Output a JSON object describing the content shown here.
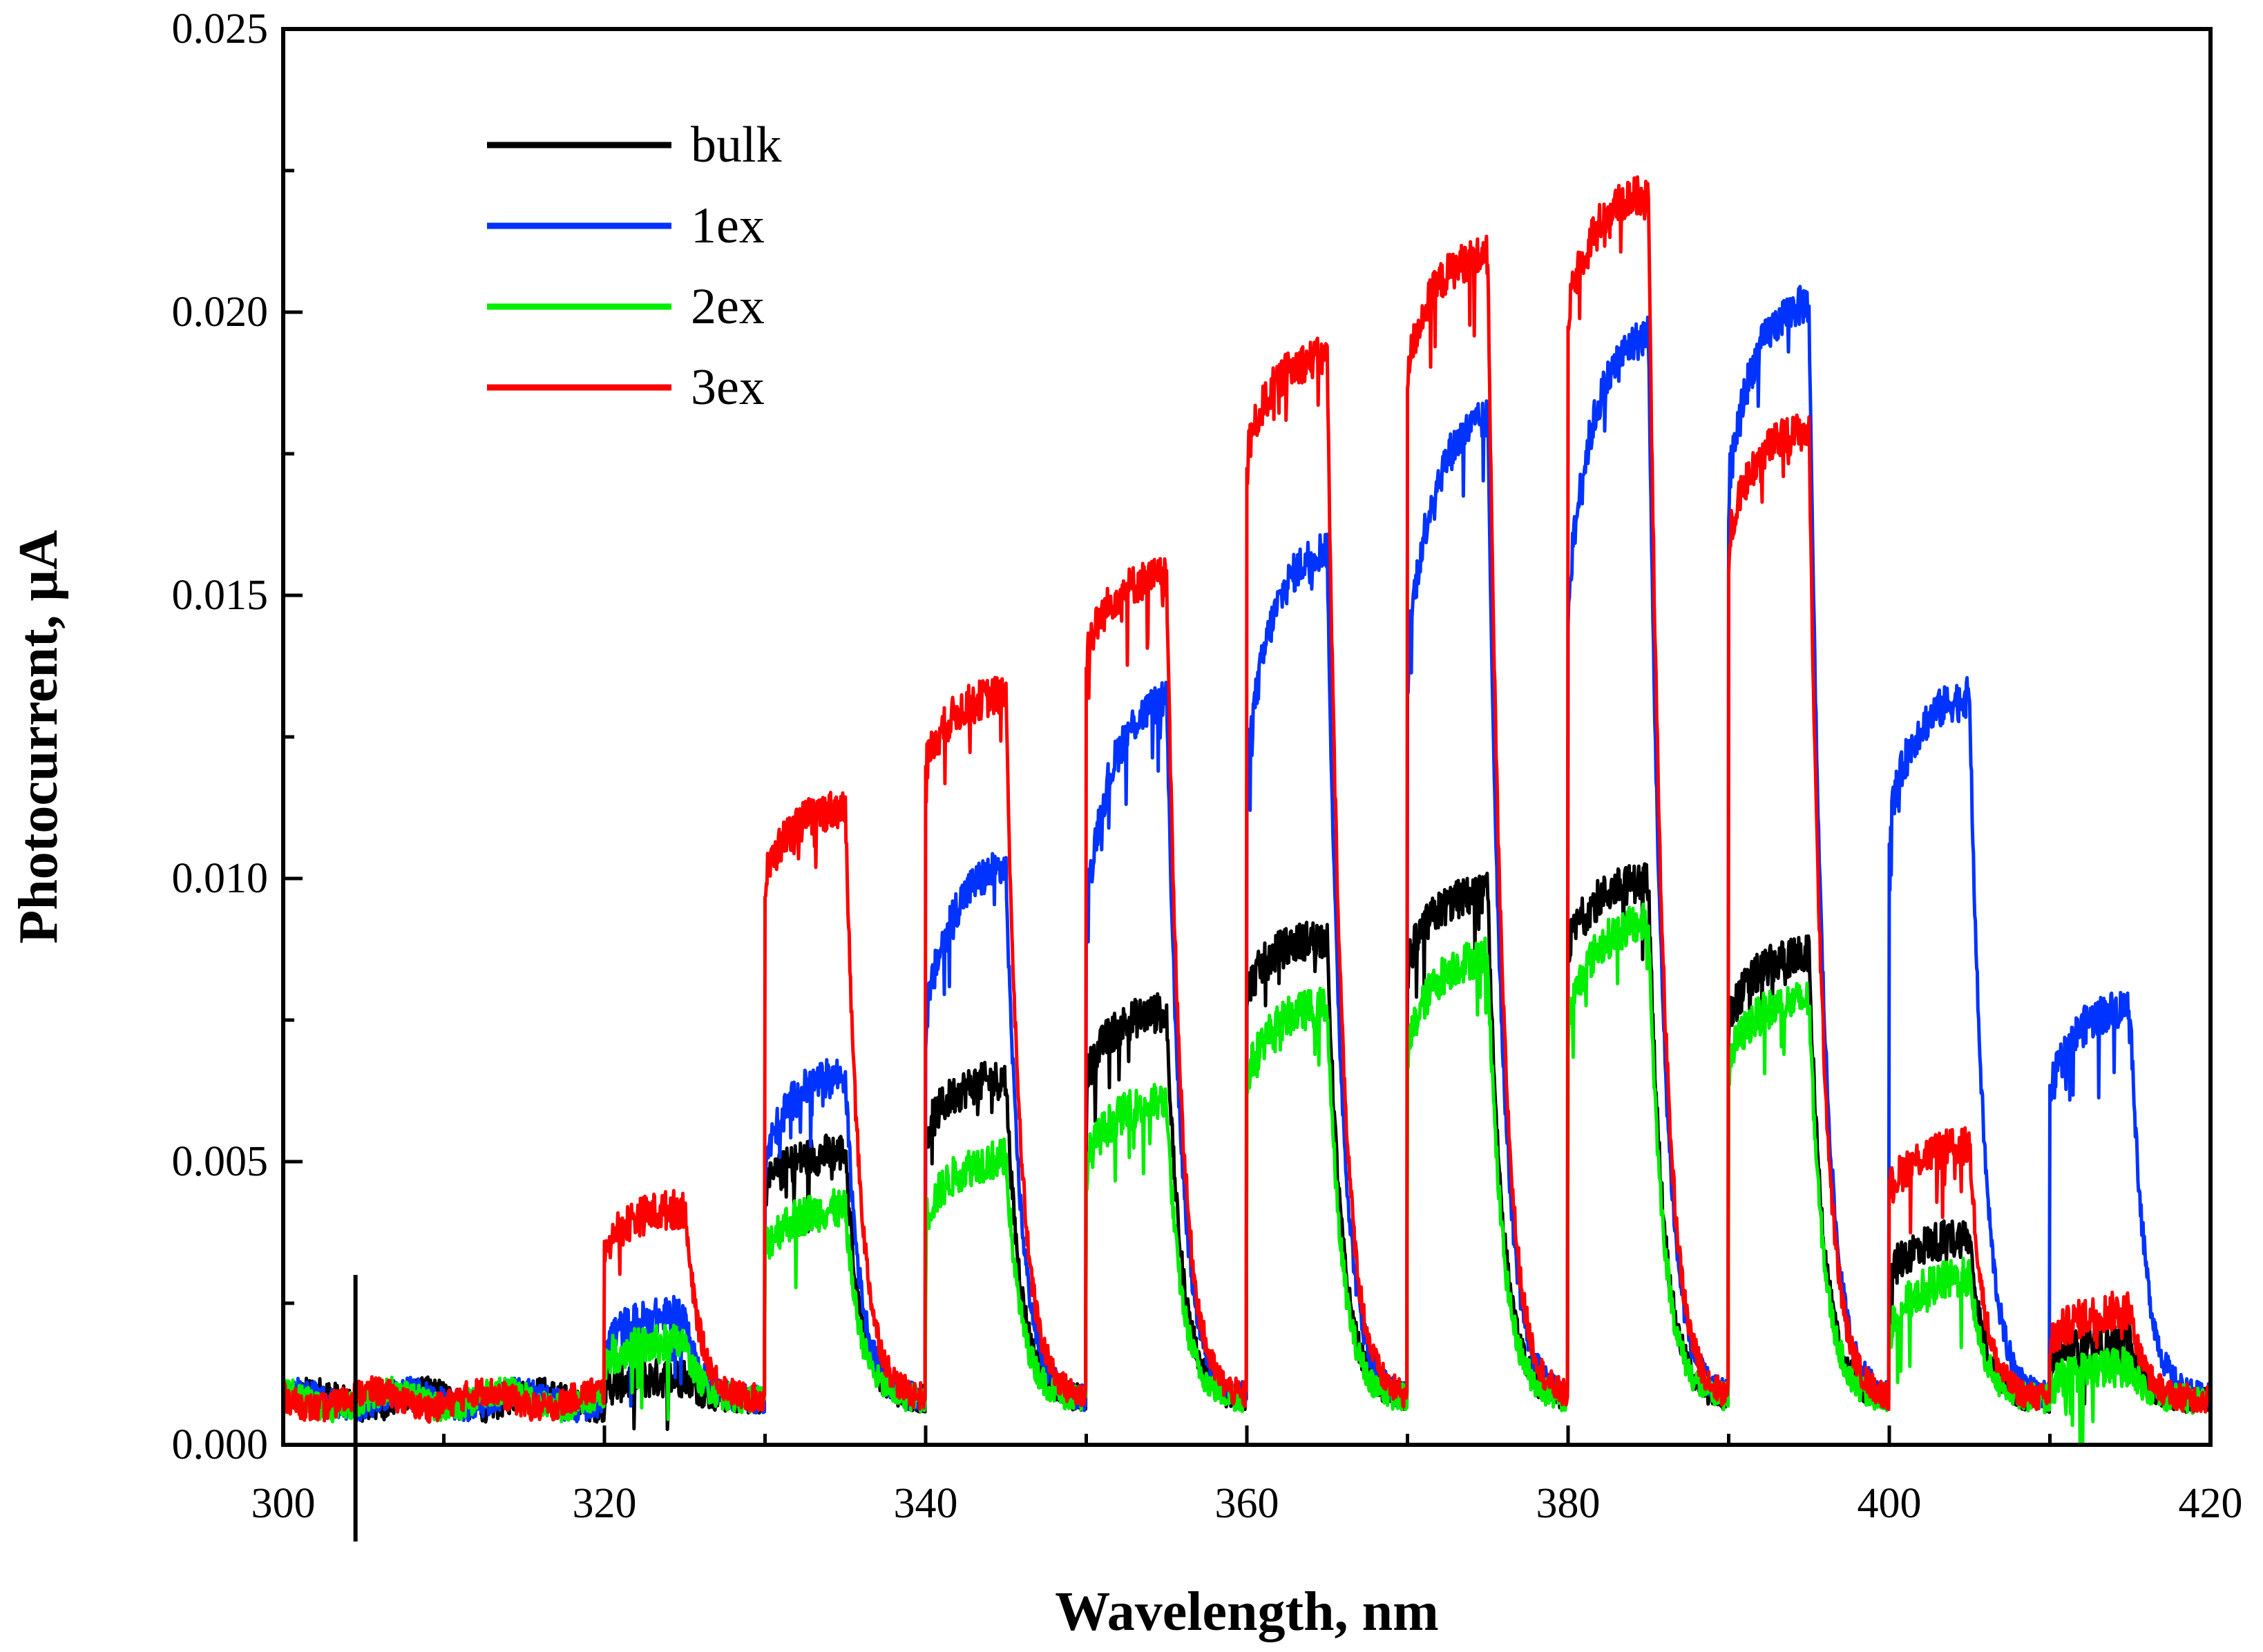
{
  "chart_data": {
    "type": "line",
    "title": "",
    "xlabel": "Wavelength, nm",
    "ylabel": "Photocurrent, μA",
    "xlim": [
      300,
      420
    ],
    "ylim": [
      0.0,
      0.025
    ],
    "xticks": [
      300,
      320,
      340,
      360,
      380,
      400,
      420
    ],
    "yticks": [
      0.0,
      0.005,
      0.01,
      0.015,
      0.02,
      0.025
    ],
    "xtick_labels": [
      "300",
      "320",
      "340",
      "360",
      "380",
      "400",
      "420"
    ],
    "ytick_labels": [
      "0.000",
      "0.005",
      "0.010",
      "0.015",
      "0.020",
      "0.025"
    ],
    "legend_position": "upper-left",
    "grid": false,
    "marker_x": 304.5,
    "background_level": 0.0008,
    "pulses": [
      {
        "on": 320,
        "off": 325
      },
      {
        "on": 330,
        "off": 335
      },
      {
        "on": 340,
        "off": 345
      },
      {
        "on": 350,
        "off": 355
      },
      {
        "on": 360,
        "off": 365
      },
      {
        "on": 370,
        "off": 375
      },
      {
        "on": 380,
        "off": 385
      },
      {
        "on": 390,
        "off": 395
      },
      {
        "on": 400,
        "off": 405
      },
      {
        "on": 410,
        "off": 415
      }
    ],
    "series": [
      {
        "name": "bulk",
        "color": "#000000",
        "pulse_start": [
          0.001,
          0.0045,
          0.0055,
          0.0065,
          0.008,
          0.0085,
          0.0088,
          0.0075,
          0.003,
          0.0015
        ],
        "pulse_peak": [
          0.0012,
          0.0052,
          0.0065,
          0.0077,
          0.009,
          0.0098,
          0.01,
          0.0087,
          0.0037,
          0.0018
        ]
      },
      {
        "name": "1ex",
        "color": "#0033ff",
        "pulse_start": [
          0.0018,
          0.005,
          0.0075,
          0.0095,
          0.012,
          0.014,
          0.015,
          0.017,
          0.011,
          0.0062
        ],
        "pulse_peak": [
          0.0023,
          0.0066,
          0.0103,
          0.0133,
          0.016,
          0.0183,
          0.0198,
          0.0203,
          0.0133,
          0.0078
        ]
      },
      {
        "name": "2ex",
        "color": "#00ee00",
        "pulse_start": [
          0.0015,
          0.0035,
          0.004,
          0.005,
          0.0065,
          0.007,
          0.0075,
          0.0068,
          0.002,
          0.001
        ],
        "pulse_peak": [
          0.0018,
          0.0042,
          0.0051,
          0.0061,
          0.0078,
          0.0087,
          0.0093,
          0.0079,
          0.003,
          0.0014
        ]
      },
      {
        "name": "3ex",
        "color": "#ff0000",
        "pulse_start": [
          0.0035,
          0.01,
          0.012,
          0.014,
          0.0175,
          0.019,
          0.02,
          0.016,
          0.0045,
          0.0018
        ],
        "pulse_peak": [
          0.0042,
          0.0113,
          0.0133,
          0.0154,
          0.0193,
          0.0211,
          0.0222,
          0.018,
          0.0053,
          0.0024
        ]
      }
    ]
  }
}
